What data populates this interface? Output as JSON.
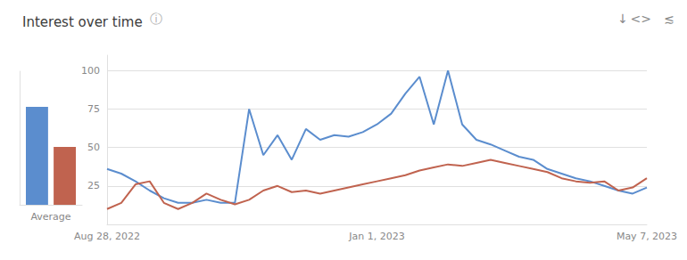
{
  "chart_data": [
    {
      "type": "line",
      "title": "Interest over time",
      "annotations": [
        "ⓘ",
        "↓",
        "<>",
        "≲"
      ],
      "categories": [
        "Aug 28, 2022",
        null,
        null,
        null,
        null,
        null,
        null,
        null,
        null,
        null,
        null,
        null,
        null,
        null,
        null,
        null,
        null,
        null,
        null,
        "Jan 1, 2023",
        null,
        null,
        null,
        null,
        null,
        null,
        null,
        null,
        null,
        null,
        null,
        null,
        null,
        null,
        null,
        null,
        null,
        null,
        "May 7, 2023"
      ],
      "series": [
        {
          "color": "#5b8dce",
          "values": [
            36,
            33,
            28,
            22,
            17,
            14,
            14,
            16,
            14,
            14,
            75,
            45,
            58,
            42,
            62,
            55,
            58,
            57,
            60,
            65,
            72,
            85,
            96,
            65,
            100,
            65,
            55,
            52,
            48,
            44,
            42,
            36,
            33,
            30,
            28,
            25,
            22,
            20,
            24
          ]
        },
        {
          "color": "#c0634f",
          "values": [
            10,
            14,
            26,
            28,
            14,
            10,
            14,
            20,
            16,
            13,
            16,
            22,
            25,
            21,
            22,
            20,
            22,
            24,
            26,
            28,
            30,
            32,
            35,
            37,
            39,
            38,
            40,
            42,
            40,
            38,
            36,
            34,
            30,
            28,
            27,
            28,
            22,
            24,
            30
          ]
        }
      ],
      "ylim": [
        0,
        110
      ],
      "yticks": [
        25,
        50,
        75,
        100
      ],
      "grid": true
    },
    {
      "type": "bar",
      "categories": [
        "Average"
      ],
      "series": [
        {
          "color": "#5b8dce",
          "values": [
            44
          ]
        },
        {
          "color": "#c0634f",
          "values": [
            26
          ]
        }
      ],
      "ylim": [
        0,
        60
      ],
      "tick_labels": "x",
      "grid": false
    }
  ]
}
